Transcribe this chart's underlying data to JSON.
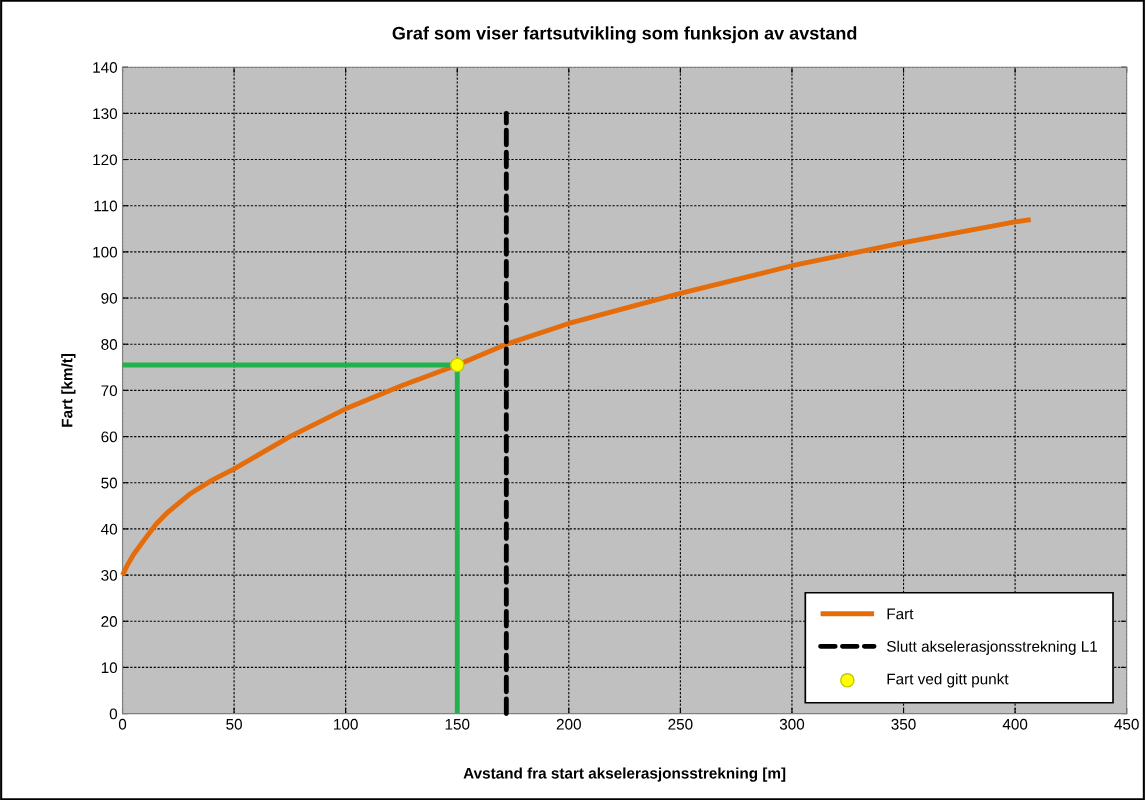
{
  "chart_data": {
    "type": "line",
    "title": "Graf som viser fartsutvikling som funksjon av avstand",
    "xlabel": "Avstand fra start akselerasjonsstrekning [m]",
    "ylabel": "Fart [km/t]",
    "xlim": [
      0,
      450
    ],
    "xticks": [
      0,
      50,
      100,
      150,
      200,
      250,
      300,
      350,
      400,
      450
    ],
    "ylim": [
      0,
      140
    ],
    "yticks": [
      0,
      10,
      20,
      30,
      40,
      50,
      60,
      70,
      80,
      90,
      100,
      110,
      120,
      130,
      140
    ],
    "grid": true,
    "legend": "bottom right",
    "series": [
      {
        "name": "Fart",
        "color": "#e46c0a",
        "line_style": "solid",
        "x": [
          0,
          2,
          5,
          10,
          15,
          20,
          30,
          40,
          50,
          75,
          100,
          125,
          150,
          172,
          200,
          250,
          300,
          350,
          400,
          407
        ],
        "values": [
          30,
          32,
          34.5,
          37.8,
          41,
          43.5,
          47.5,
          50.5,
          53,
          60,
          66,
          71,
          75.5,
          80,
          84.5,
          91,
          97,
          102,
          106.5,
          107
        ]
      },
      {
        "name": "Slutt akselerasjonsstrekning L1",
        "type": "line",
        "color": "#000000",
        "line_style": "dashed",
        "x": [
          172,
          172
        ],
        "values": [
          0,
          130
        ]
      },
      {
        "color": "#22b14c",
        "line_style": "solid",
        "x": [
          0,
          150,
          150
        ],
        "values": [
          75.5,
          75.5,
          0
        ]
      },
      {
        "name": "Fart ved gitt punkt",
        "type": "scatter",
        "color": "#ffff00",
        "marker": "circle",
        "x": [
          150
        ],
        "values": [
          75.5
        ]
      }
    ]
  }
}
